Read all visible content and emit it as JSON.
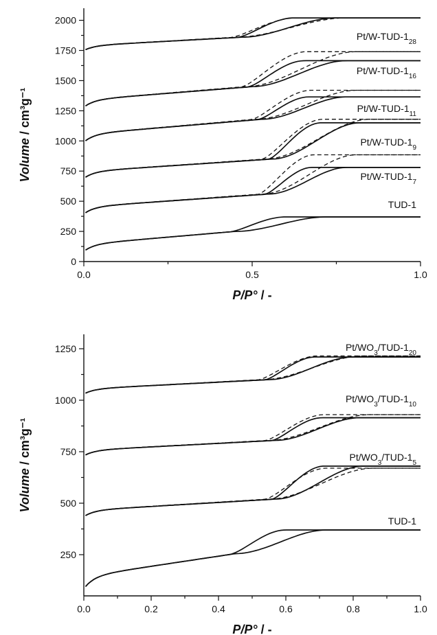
{
  "chart_data": [
    {
      "type": "line",
      "xlabel_main": "P/P°",
      "xlabel_suffix": " / -",
      "ylabel_main": "Volume",
      "ylabel_unit": " / cm³g⁻¹",
      "xlim": [
        0,
        1
      ],
      "ylim": [
        0,
        2100
      ],
      "x_ticks": [
        0.0,
        0.5,
        1.0
      ],
      "x_tick_labels": [
        "0.0",
        "0.5",
        "1.0"
      ],
      "y_ticks": [
        0,
        250,
        500,
        750,
        1000,
        1250,
        1500,
        1750,
        2000
      ],
      "y_tick_labels": [
        "0",
        "250",
        "500",
        "750",
        "1000",
        "1250",
        "1500",
        "1750",
        "2000"
      ],
      "series": [
        {
          "label_base": "TUD-1",
          "label_sub": "",
          "start": 85,
          "knee": 250,
          "plateau": 370,
          "onset": 0.45,
          "close": 0.72,
          "dashed": false
        },
        {
          "label_base": "Pt/W-TUD-1",
          "label_sub": "7",
          "start": 395,
          "knee": 560,
          "plateau": 780,
          "dashed_plateau": 885,
          "onset": 0.55,
          "close": 0.78,
          "dashed": true
        },
        {
          "label_base": "Pt/W-TUD-1",
          "label_sub": "9",
          "start": 690,
          "knee": 850,
          "plateau": 1150,
          "dashed_plateau": 1180,
          "onset": 0.56,
          "close": 0.82,
          "dashed": true
        },
        {
          "label_base": "Pt/W-TUD-1",
          "label_sub": "11",
          "start": 990,
          "knee": 1180,
          "plateau": 1365,
          "dashed_plateau": 1420,
          "onset": 0.53,
          "close": 0.78,
          "dashed": true
        },
        {
          "label_base": "Pt/W-TUD-1",
          "label_sub": "16",
          "start": 1280,
          "knee": 1450,
          "plateau": 1665,
          "dashed_plateau": 1740,
          "onset": 0.5,
          "close": 0.78,
          "dashed": true
        },
        {
          "label_base": "Pt/W-TUD-1",
          "label_sub": "28",
          "start": 1750,
          "knee": 1860,
          "plateau": 2020,
          "dashed_plateau": 2020,
          "onset": 0.47,
          "close": 0.75,
          "dashed": true
        }
      ]
    },
    {
      "type": "line",
      "xlabel_main": "P/P°",
      "xlabel_suffix": " / -",
      "ylabel_main": "Volume",
      "ylabel_unit": " / cm³g⁻¹",
      "xlim": [
        0,
        1
      ],
      "ylim": [
        50,
        1320
      ],
      "x_ticks": [
        0.0,
        0.2,
        0.4,
        0.6,
        0.8,
        1.0
      ],
      "x_tick_labels": [
        "0.0",
        "0.2",
        "0.4",
        "0.6",
        "0.8",
        "1.0"
      ],
      "y_ticks": [
        250,
        500,
        750,
        1000,
        1250
      ],
      "y_tick_labels": [
        "250",
        "500",
        "750",
        "1000",
        "1250"
      ],
      "series": [
        {
          "label_base": "TUD-1",
          "label_pre": "",
          "label_sub": "",
          "start": 85,
          "knee": 255,
          "plateau": 370,
          "onset": 0.45,
          "close": 0.72,
          "dashed": false
        },
        {
          "label_base": "Pt/WO",
          "label_mid_sub": "3",
          "label_rest": "/TUD-1",
          "label_sub": "5",
          "start": 435,
          "knee": 520,
          "plateau": 680,
          "dashed_plateau": 670,
          "onset": 0.57,
          "close": 0.83,
          "dashed": true
        },
        {
          "label_base": "Pt/WO",
          "label_mid_sub": "3",
          "label_rest": "/TUD-1",
          "label_sub": "10",
          "start": 730,
          "knee": 805,
          "plateau": 915,
          "dashed_plateau": 930,
          "onset": 0.57,
          "close": 0.82,
          "dashed": true
        },
        {
          "label_base": "Pt/WO",
          "label_mid_sub": "3",
          "label_rest": "/TUD-1",
          "label_sub": "20",
          "start": 1030,
          "knee": 1100,
          "plateau": 1210,
          "dashed_plateau": 1215,
          "onset": 0.55,
          "close": 0.8,
          "dashed": true
        }
      ]
    }
  ]
}
